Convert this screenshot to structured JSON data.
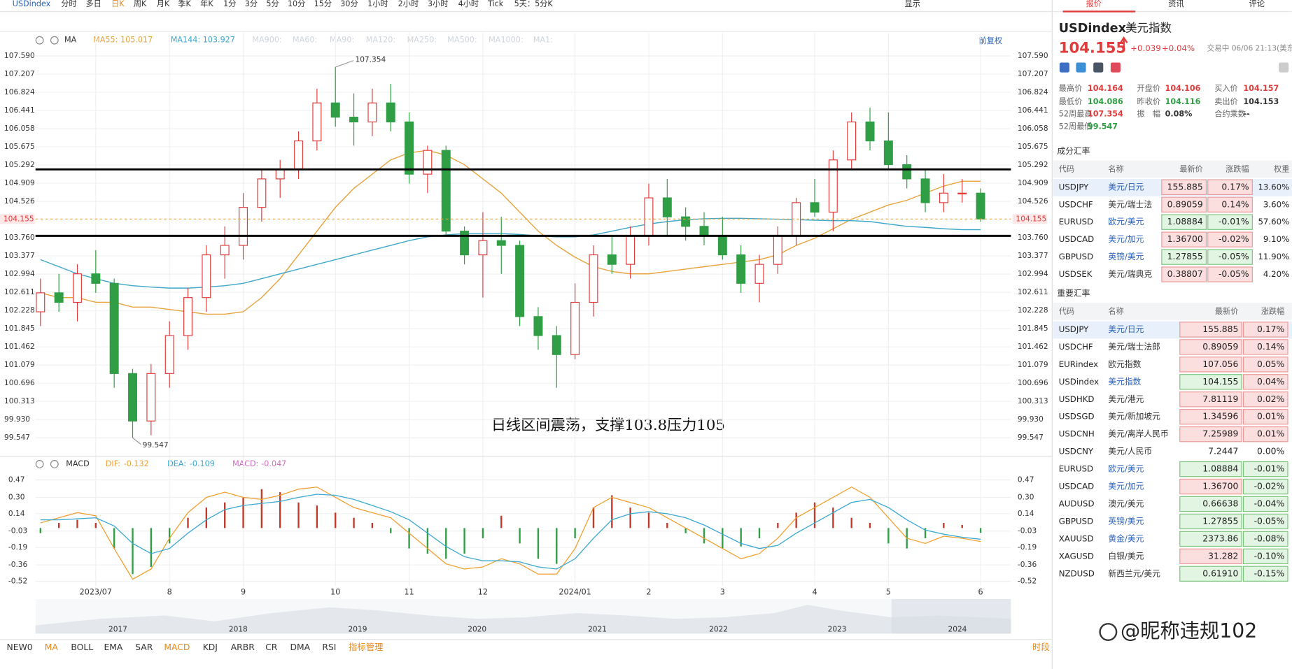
{
  "toolbar": {
    "symbol": "USDindex",
    "periods": [
      "分时",
      "多日",
      "日K",
      "周K",
      "月K",
      "季K",
      "年K",
      "1分",
      "3分",
      "5分",
      "10分",
      "15分",
      "30分",
      "1小时",
      "2小时",
      "3小时",
      "4小时",
      "Tick",
      "5天：5分K"
    ],
    "active": 2,
    "display": "显示"
  },
  "ma_legend": {
    "label": "MA",
    "inactive": [
      "MA900:",
      "MA60:",
      "MA90:",
      "MA120:",
      "MA250:",
      "MA500:",
      "MA1000:",
      "MA1:"
    ],
    "adjust": "前复权"
  },
  "chart_data": [
    {
      "type": "candlestick",
      "note": "日线区间震荡，支撑103.8压力105",
      "categories": [
        null,
        null,
        null,
        "2023/07",
        null,
        null,
        null,
        "8",
        null,
        null,
        null,
        "9",
        null,
        null,
        null,
        null,
        "10",
        null,
        null,
        null,
        "11",
        null,
        null,
        null,
        "12",
        null,
        null,
        null,
        null,
        "2024/01",
        null,
        null,
        null,
        "2",
        null,
        null,
        null,
        "3",
        null,
        null,
        null,
        null,
        "4",
        null,
        null,
        null,
        "5",
        null,
        null,
        null,
        null,
        "6"
      ],
      "open": [
        102.2,
        102.6,
        102.4,
        103.0,
        102.8,
        100.9,
        99.9,
        100.9,
        101.7,
        102.5,
        103.4,
        103.6,
        104.4,
        105.0,
        105.2,
        105.8,
        106.6,
        106.3,
        106.2,
        106.6,
        106.2,
        105.1,
        105.6,
        103.9,
        103.4,
        103.7,
        103.6,
        102.1,
        101.7,
        101.3,
        102.4,
        103.4,
        103.2,
        103.8,
        104.6,
        104.2,
        104.0,
        103.8,
        103.4,
        102.8,
        103.2,
        103.8,
        104.5,
        104.3,
        105.4,
        106.2,
        105.8,
        105.3,
        105.0,
        104.5,
        104.7,
        104.7
      ],
      "high": [
        102.9,
        103.0,
        103.2,
        103.5,
        102.9,
        101.0,
        101.1,
        102.0,
        102.7,
        103.6,
        104.0,
        104.7,
        105.2,
        105.4,
        106.0,
        106.9,
        107.354,
        106.8,
        106.9,
        107.0,
        106.4,
        105.7,
        105.7,
        104.0,
        104.3,
        104.2,
        103.7,
        102.3,
        101.9,
        102.8,
        103.6,
        103.8,
        104.0,
        104.9,
        105.0,
        104.4,
        104.3,
        104.2,
        103.6,
        103.4,
        104.0,
        104.6,
        105.0,
        105.6,
        106.4,
        106.5,
        106.4,
        105.5,
        105.2,
        105.1,
        105.0,
        104.8
      ],
      "low": [
        101.9,
        102.2,
        102.0,
        102.6,
        100.6,
        99.547,
        99.6,
        100.6,
        101.4,
        102.2,
        102.9,
        103.3,
        104.1,
        104.6,
        105.0,
        105.6,
        106.1,
        105.7,
        105.9,
        106.0,
        104.9,
        104.7,
        103.8,
        103.2,
        102.5,
        103.0,
        101.9,
        101.4,
        100.6,
        101.2,
        102.1,
        103.0,
        102.9,
        103.6,
        103.8,
        103.7,
        103.6,
        103.3,
        102.6,
        102.4,
        103.0,
        103.6,
        104.2,
        103.9,
        105.2,
        105.6,
        105.2,
        104.8,
        104.3,
        104.3,
        104.5,
        104.1
      ],
      "close": [
        102.6,
        102.4,
        103.0,
        102.8,
        100.9,
        99.9,
        100.9,
        101.7,
        102.5,
        103.4,
        103.6,
        104.4,
        105.0,
        105.2,
        105.8,
        106.6,
        106.3,
        106.2,
        106.6,
        106.2,
        105.1,
        105.6,
        103.9,
        103.4,
        103.7,
        103.6,
        102.1,
        101.7,
        101.3,
        102.4,
        103.4,
        103.2,
        103.8,
        104.6,
        104.2,
        104.0,
        103.8,
        103.4,
        102.8,
        103.2,
        103.8,
        104.5,
        104.3,
        105.4,
        106.2,
        105.8,
        105.3,
        105.0,
        104.5,
        104.7,
        104.7,
        104.155
      ],
      "up_color": "#e23b3b",
      "down_color": "#2f9e44",
      "ma": [
        {
          "name": "MA55:",
          "current": 105.017,
          "color": "#e8a33d",
          "values": [
            102.6,
            102.5,
            102.5,
            102.4,
            102.4,
            102.3,
            102.3,
            102.25,
            102.2,
            102.15,
            102.15,
            102.2,
            102.5,
            102.9,
            103.4,
            103.9,
            104.4,
            104.8,
            105.1,
            105.4,
            105.55,
            105.6,
            105.5,
            105.3,
            105.0,
            104.7,
            104.3,
            103.9,
            103.6,
            103.35,
            103.15,
            103.05,
            103.0,
            103.0,
            103.05,
            103.1,
            103.15,
            103.2,
            103.25,
            103.3,
            103.4,
            103.6,
            103.75,
            103.95,
            104.15,
            104.3,
            104.45,
            104.55,
            104.7,
            104.85,
            104.95,
            104.95
          ]
        },
        {
          "name": "MA144:",
          "current": 103.927,
          "color": "#3fa7c9",
          "values": [
            103.3,
            103.15,
            103.0,
            102.9,
            102.8,
            102.75,
            102.72,
            102.7,
            102.7,
            102.72,
            102.75,
            102.8,
            102.9,
            103.0,
            103.1,
            103.2,
            103.3,
            103.4,
            103.5,
            103.6,
            103.7,
            103.78,
            103.82,
            103.85,
            103.85,
            103.85,
            103.83,
            103.8,
            103.78,
            103.78,
            103.82,
            103.9,
            103.98,
            104.05,
            104.1,
            104.14,
            104.16,
            104.17,
            104.17,
            104.16,
            104.15,
            104.14,
            104.13,
            104.12,
            104.12,
            104.1,
            104.05,
            104.0,
            103.98,
            103.95,
            103.93,
            103.93
          ]
        }
      ],
      "hlines": [
        105.2,
        103.8
      ],
      "last_price": 104.155,
      "high_label": 107.354,
      "low_label": 99.547,
      "ylim": [
        99.183,
        108.075
      ],
      "yticks": [
        {
          "value": 107.59,
          "label": "107.590"
        },
        107.207,
        106.824,
        106.441,
        106.058,
        105.675,
        105.292,
        104.909,
        104.526,
        {
          "value": 103.76,
          "label": "103.760"
        },
        103.377,
        102.994,
        102.611,
        102.228,
        101.845,
        101.462,
        101.079,
        100.696,
        100.313,
        {
          "value": 99.93,
          "label": "99.930"
        },
        99.547
      ],
      "grid": true
    },
    {
      "type": "macd",
      "label": "MACD",
      "series": [
        {
          "name": "DIF:",
          "current": -0.132,
          "color": "#f0a030",
          "values": [
            0.05,
            0.1,
            0.15,
            0.12,
            -0.2,
            -0.5,
            -0.4,
            -0.1,
            0.15,
            0.3,
            0.35,
            0.3,
            0.28,
            0.32,
            0.38,
            0.4,
            0.3,
            0.2,
            0.15,
            0.1,
            -0.05,
            -0.2,
            -0.35,
            -0.4,
            -0.38,
            -0.3,
            -0.35,
            -0.45,
            -0.45,
            -0.2,
            0.2,
            0.3,
            0.25,
            0.2,
            0.1,
            0.0,
            -0.1,
            -0.2,
            -0.3,
            -0.25,
            -0.1,
            0.1,
            0.2,
            0.3,
            0.4,
            0.3,
            0.1,
            -0.1,
            -0.15,
            -0.08,
            -0.1,
            -0.132
          ]
        },
        {
          "name": "DEA:",
          "current": -0.109,
          "color": "#3aa8d0",
          "values": [
            0.08,
            0.08,
            0.09,
            0.1,
            0.02,
            -0.15,
            -0.25,
            -0.2,
            -0.05,
            0.08,
            0.18,
            0.22,
            0.24,
            0.26,
            0.3,
            0.33,
            0.32,
            0.28,
            0.22,
            0.16,
            0.08,
            -0.05,
            -0.18,
            -0.28,
            -0.32,
            -0.32,
            -0.33,
            -0.38,
            -0.4,
            -0.3,
            -0.1,
            0.08,
            0.14,
            0.16,
            0.14,
            0.1,
            0.03,
            -0.06,
            -0.15,
            -0.2,
            -0.17,
            -0.05,
            0.05,
            0.15,
            0.25,
            0.28,
            0.2,
            0.08,
            -0.02,
            -0.06,
            -0.09,
            -0.109
          ]
        },
        {
          "name": "MACD:",
          "current": -0.047,
          "color": "#d070c0",
          "values": [
            -0.05,
            0.05,
            0.08,
            0.05,
            -0.2,
            -0.45,
            -0.38,
            -0.15,
            0.1,
            0.2,
            0.25,
            0.3,
            0.38,
            0.35,
            0.25,
            0.22,
            0.15,
            0.1,
            0.05,
            -0.05,
            -0.2,
            -0.25,
            -0.3,
            -0.25,
            -0.1,
            0.12,
            -0.15,
            -0.3,
            -0.35,
            -0.1,
            0.2,
            0.32,
            0.2,
            0.15,
            0.05,
            -0.05,
            -0.15,
            -0.2,
            -0.18,
            -0.1,
            0.05,
            0.15,
            0.25,
            0.2,
            0.1,
            0.05,
            -0.15,
            -0.2,
            -0.1,
            0.05,
            0.03,
            -0.047
          ]
        }
      ],
      "ylim": [
        -0.565,
        0.544
      ],
      "yticks": [
        0.47,
        {
          "value": 0.3,
          "label": "0.30"
        },
        0.14,
        -0.03,
        -0.19,
        -0.36,
        -0.52
      ]
    }
  ],
  "overview_years": [
    "2017",
    "2018",
    "2019",
    "2020",
    "2021",
    "2022",
    "2023",
    "2024"
  ],
  "indicators": {
    "tabs": [
      "NEW0",
      "MA",
      "BOLL",
      "EMA",
      "SAR",
      "MACD",
      "KDJ",
      "ARBR",
      "CR",
      "DMA",
      "RSI",
      "指标管理"
    ],
    "session": "时段"
  },
  "panel": {
    "tabs": [
      "报价",
      "资讯",
      "评论"
    ],
    "symbol": "USDindex",
    "name": "美元指数",
    "price": "104.155",
    "change": "+0.039",
    "change_pct": "+0.04%",
    "status": "交易中 06/06 21:13(美东",
    "stats": [
      [
        "最高价",
        "104.164",
        "开盘价",
        "104.106",
        "买入价",
        "104.157"
      ],
      [
        "最低价",
        "104.086",
        "昨收价",
        "104.116",
        "卖出价",
        "104.153"
      ],
      [
        "52周最高",
        "107.354",
        "振　幅",
        "0.08%",
        "合约乘数",
        "--"
      ],
      [
        "52周最低",
        "99.547"
      ]
    ],
    "components": {
      "title": "成分汇率",
      "headers": [
        "代码",
        "名称",
        "最新价",
        "涨跌幅",
        "权重"
      ],
      "rows": [
        {
          "code": "USDJPY",
          "name": "美元/日元",
          "price": "155.885",
          "change": "0.17%",
          "weight": "13.60%",
          "colors": [
            "#fbdede",
            "#fbdede"
          ],
          "name_color": "#2a62b8"
        },
        {
          "code": "USDCHF",
          "name": "美元/瑞士法",
          "price": "0.89059",
          "change": "0.14%",
          "weight": "3.60%",
          "colors": [
            "#fbdede",
            "#fbdede"
          ],
          "name_color": "#333"
        },
        {
          "code": "EURUSD",
          "name": "欧元/美元",
          "price": "1.08884",
          "change": "-0.01%",
          "weight": "57.60%",
          "colors": [
            "#e2f4e2",
            "#e2f4e2"
          ],
          "name_color": "#2a62b8"
        },
        {
          "code": "USDCAD",
          "name": "美元/加元",
          "price": "1.36700",
          "change": "-0.02%",
          "weight": "9.10%",
          "colors": [
            "#fbdede",
            "#fbdede"
          ],
          "name_color": "#2a62b8"
        },
        {
          "code": "GBPUSD",
          "name": "英镑/美元",
          "price": "1.27855",
          "change": "-0.05%",
          "weight": "11.90%",
          "colors": [
            "#e2f4e2",
            "#e2f4e2"
          ],
          "name_color": "#2a62b8"
        },
        {
          "code": "USDSEK",
          "name": "美元/瑞典克",
          "price": "0.38807",
          "change": "-0.05%",
          "weight": "4.20%",
          "colors": [
            "#fbdede",
            "#fbdede"
          ],
          "name_color": "#333"
        }
      ]
    },
    "majors": {
      "title": "重要汇率",
      "headers": [
        "代码",
        "名称",
        "最新价",
        "涨跌幅"
      ],
      "rows": [
        {
          "code": "USDJPY",
          "name": "美元/日元",
          "price": "155.885",
          "change": "0.17%",
          "colors": [
            "#fbdede",
            "#fbdede"
          ],
          "name_color": "#2a62b8"
        },
        {
          "code": "USDCHF",
          "name": "美元/瑞士法郎",
          "price": "0.89059",
          "change": "0.14%",
          "colors": [
            "#fbdede",
            "#fbdede"
          ],
          "name_color": "#333"
        },
        {
          "code": "EURindex",
          "name": "欧元指数",
          "price": "107.056",
          "change": "0.05%",
          "colors": [
            "#fbdede",
            "#fbdede"
          ],
          "name_color": "#333"
        },
        {
          "code": "USDindex",
          "name": "美元指数",
          "price": "104.155",
          "change": "0.04%",
          "colors": [
            "#e2f4e2",
            "#fbdede"
          ],
          "name_color": "#2a62b8"
        },
        {
          "code": "USDHKD",
          "name": "美元/港元",
          "price": "7.81119",
          "change": "0.02%",
          "colors": [
            "#fbdede",
            "#fbdede"
          ],
          "name_color": "#333"
        },
        {
          "code": "USDSGD",
          "name": "美元/新加坡元",
          "price": "1.34596",
          "change": "0.01%",
          "colors": [
            "#fbdede",
            "#fbdede"
          ],
          "name_color": "#333"
        },
        {
          "code": "USDCNH",
          "name": "美元/离岸人民币",
          "price": "7.25989",
          "change": "0.01%",
          "colors": [
            "#fbdede",
            "#fbdede"
          ],
          "name_color": "#333"
        },
        {
          "code": "USDCNY",
          "name": "美元/人民币",
          "price": "7.2447",
          "change": "0.00%",
          "colors": [
            "#ffffff",
            "#ffffff"
          ],
          "name_color": "#333"
        },
        {
          "code": "EURUSD",
          "name": "欧元/美元",
          "price": "1.08884",
          "change": "-0.01%",
          "colors": [
            "#e2f4e2",
            "#e2f4e2"
          ],
          "name_color": "#2a62b8"
        },
        {
          "code": "USDCAD",
          "name": "美元/加元",
          "price": "1.36700",
          "change": "-0.02%",
          "colors": [
            "#fbdede",
            "#e2f4e2"
          ],
          "name_color": "#2a62b8"
        },
        {
          "code": "AUDUSD",
          "name": "澳元/美元",
          "price": "0.66638",
          "change": "-0.04%",
          "colors": [
            "#e2f4e2",
            "#e2f4e2"
          ],
          "name_color": "#333"
        },
        {
          "code": "GBPUSD",
          "name": "英镑/美元",
          "price": "1.27855",
          "change": "-0.05%",
          "colors": [
            "#e2f4e2",
            "#e2f4e2"
          ],
          "name_color": "#2a62b8"
        },
        {
          "code": "XAUUSD",
          "name": "黄金/美元",
          "price": "2373.86",
          "change": "-0.08%",
          "colors": [
            "#e2f4e2",
            "#e2f4e2"
          ],
          "name_color": "#2a62b8"
        },
        {
          "code": "XAGUSD",
          "name": "白银/美元",
          "price": "31.282",
          "change": "-0.10%",
          "colors": [
            "#fbdede",
            "#e2f4e2"
          ],
          "name_color": "#333"
        },
        {
          "code": "NZDUSD",
          "name": "新西兰元/美元",
          "price": "0.61910",
          "change": "-0.15%",
          "colors": [
            "#e2f4e2",
            "#e2f4e2"
          ],
          "name_color": "#333"
        }
      ]
    }
  },
  "watermark": "@昵称违规102"
}
